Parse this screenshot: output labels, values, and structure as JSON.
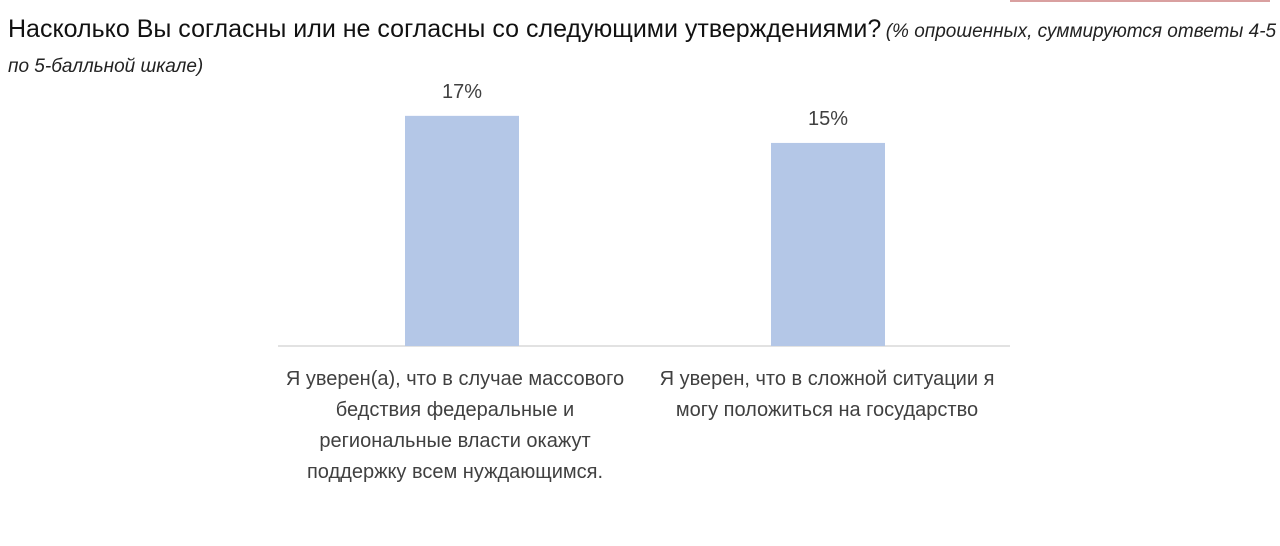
{
  "heading": {
    "question": "Насколько Вы согласны или не согласны со следующими утверждениями?",
    "note": "(% опрошенных, суммируются ответы 4-5 по 5-балльной шкале)"
  },
  "colors": {
    "bar": "#b4c7e7",
    "axis": "#d9d9d9",
    "label": "#404040"
  },
  "chart_data": {
    "type": "bar",
    "categories": [
      "Я уверен(а), что в случае массового бедствия федеральные и региональные власти окажут поддержку всем нуждающимся.",
      "Я уверен, что в сложной ситуации я могу положиться на государство"
    ],
    "values": [
      17,
      15
    ],
    "data_labels": [
      "17%",
      "15%"
    ],
    "unit": "%",
    "ylim": [
      0,
      19.5
    ],
    "grid": false,
    "legend": "none"
  }
}
